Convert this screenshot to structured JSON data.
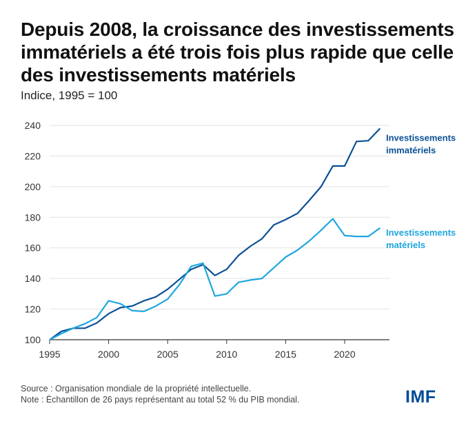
{
  "title": "Depuis 2008, la croissance des investissements immatériels a été trois fois plus rapide que celle des investissements matériels",
  "subtitle": "Indice, 1995 = 100",
  "source": "Source : Organisation mondiale de la propriété intellectuelle.",
  "note": "Note : Échantillon de 26 pays représentant au total 52 % du PIB mondial.",
  "logo": "IMF",
  "chart_data": {
    "type": "line",
    "x": [
      1995,
      1996,
      1997,
      1998,
      1999,
      2000,
      2001,
      2002,
      2003,
      2004,
      2005,
      2006,
      2007,
      2008,
      2009,
      2010,
      2011,
      2012,
      2013,
      2014,
      2015,
      2016,
      2017,
      2018,
      2019,
      2020,
      2021,
      2022,
      2023
    ],
    "xlim": [
      1995,
      2023.8
    ],
    "ylim": [
      100,
      240
    ],
    "x_ticks": [
      1995,
      2000,
      2005,
      2010,
      2015,
      2020
    ],
    "y_ticks": [
      100,
      120,
      140,
      160,
      180,
      200,
      220,
      240
    ],
    "grid": "horizontal",
    "series": [
      {
        "name": "Investissements immatériels",
        "label_lines": [
          "Investissements",
          "immatériels"
        ],
        "color": "#0b4f96",
        "values": [
          100,
          105.5,
          107.5,
          107.5,
          111,
          117,
          121,
          122,
          125.5,
          128,
          133,
          139.5,
          146,
          149,
          142,
          146,
          155,
          161,
          166,
          175,
          178.5,
          182.5,
          191,
          200,
          213.5,
          213.5,
          229.5,
          230,
          238
        ]
      },
      {
        "name": "Investissements matériels",
        "label_lines": [
          "Investissements",
          "matériels"
        ],
        "color": "#1ea6df",
        "values": [
          100,
          104,
          107.5,
          110.5,
          114.5,
          125.5,
          123.5,
          119,
          118.5,
          122,
          126.5,
          136,
          148,
          150,
          128.5,
          130,
          137.5,
          139,
          140,
          147,
          154,
          158.5,
          164.5,
          171.5,
          179,
          168,
          167.5,
          167.5,
          173
        ]
      }
    ]
  }
}
